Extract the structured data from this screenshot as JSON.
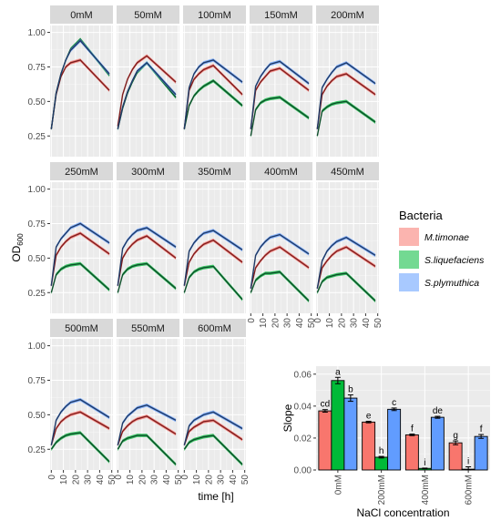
{
  "colors": {
    "M.timonae": "#f8766d",
    "S.liquefaciens": "#00ba38",
    "S.plymuthica": "#619cff",
    "line_dark": "#000000",
    "line_red": "#7f1d1d",
    "line_green": "#0d4d2a",
    "line_blue": "#1f3a66"
  },
  "chart_data": [
    {
      "type": "line",
      "facet_by": "NaCl concentration",
      "xlabel": "time [h]",
      "ylabel": "OD",
      "ylabel_sub": "600",
      "ylim": [
        0.1,
        1.05
      ],
      "xlim": [
        -1,
        51
      ],
      "x_ticks": [
        "0",
        "10",
        "20",
        "30",
        "40",
        "50"
      ],
      "y_ticks": [
        "0.25",
        "0.50",
        "0.75",
        "1.00"
      ],
      "legend": {
        "title": "Bacteria",
        "entries": [
          "M.timonae",
          "S.liquefaciens",
          "S.plymuthica"
        ],
        "position": "right"
      },
      "panels": [
        {
          "label": "0mM",
          "peak_t": 24,
          "series": [
            {
              "name": "M.timonae",
              "values": [
                0.3,
                0.55,
                0.68,
                0.75,
                0.78,
                0.8,
                0.58
              ]
            },
            {
              "name": "S.liquefaciens",
              "values": [
                0.3,
                0.56,
                0.7,
                0.8,
                0.88,
                0.95,
                0.69
              ]
            },
            {
              "name": "S.plymuthica",
              "values": [
                0.3,
                0.56,
                0.7,
                0.8,
                0.87,
                0.94,
                0.7
              ]
            }
          ]
        },
        {
          "label": "50mM",
          "peak_t": 24,
          "series": [
            {
              "name": "M.timonae",
              "values": [
                0.32,
                0.55,
                0.66,
                0.73,
                0.78,
                0.83,
                0.64
              ]
            },
            {
              "name": "S.liquefaciens",
              "values": [
                0.3,
                0.45,
                0.56,
                0.64,
                0.71,
                0.78,
                0.53
              ]
            },
            {
              "name": "S.plymuthica",
              "values": [
                0.3,
                0.46,
                0.57,
                0.65,
                0.72,
                0.78,
                0.55
              ]
            }
          ]
        },
        {
          "label": "100mM",
          "peak_t": 24,
          "series": [
            {
              "name": "M.timonae",
              "values": [
                0.3,
                0.58,
                0.66,
                0.7,
                0.73,
                0.76,
                0.55
              ]
            },
            {
              "name": "S.liquefaciens",
              "values": [
                0.3,
                0.47,
                0.54,
                0.58,
                0.61,
                0.65,
                0.47
              ]
            },
            {
              "name": "S.plymuthica",
              "values": [
                0.3,
                0.6,
                0.7,
                0.75,
                0.78,
                0.8,
                0.64
              ]
            }
          ]
        },
        {
          "label": "150mM",
          "peak_t": 24,
          "series": [
            {
              "name": "M.timonae",
              "values": [
                0.3,
                0.58,
                0.64,
                0.68,
                0.72,
                0.74,
                0.58
              ]
            },
            {
              "name": "S.liquefaciens",
              "values": [
                0.25,
                0.44,
                0.49,
                0.51,
                0.52,
                0.53,
                0.38
              ]
            },
            {
              "name": "S.plymuthica",
              "values": [
                0.3,
                0.61,
                0.68,
                0.73,
                0.77,
                0.79,
                0.63
              ]
            }
          ]
        },
        {
          "label": "200mM",
          "peak_t": 24,
          "series": [
            {
              "name": "M.timonae",
              "values": [
                0.3,
                0.55,
                0.61,
                0.65,
                0.68,
                0.7,
                0.55
              ]
            },
            {
              "name": "S.liquefaciens",
              "values": [
                0.25,
                0.43,
                0.46,
                0.48,
                0.49,
                0.5,
                0.35
              ]
            },
            {
              "name": "S.plymuthica",
              "values": [
                0.3,
                0.6,
                0.66,
                0.71,
                0.75,
                0.78,
                0.63
              ]
            }
          ]
        },
        {
          "label": "250mM",
          "peak_t": 24,
          "series": [
            {
              "name": "M.timonae",
              "values": [
                0.3,
                0.52,
                0.58,
                0.62,
                0.65,
                0.68,
                0.53
              ]
            },
            {
              "name": "S.liquefaciens",
              "values": [
                0.25,
                0.38,
                0.42,
                0.44,
                0.45,
                0.46,
                0.27
              ]
            },
            {
              "name": "S.plymuthica",
              "values": [
                0.3,
                0.58,
                0.64,
                0.68,
                0.72,
                0.75,
                0.61
              ]
            }
          ]
        },
        {
          "label": "300mM",
          "peak_t": 24,
          "series": [
            {
              "name": "M.timonae",
              "values": [
                0.3,
                0.5,
                0.56,
                0.6,
                0.63,
                0.66,
                0.5
              ]
            },
            {
              "name": "S.liquefaciens",
              "values": [
                0.25,
                0.38,
                0.42,
                0.44,
                0.45,
                0.46,
                0.28
              ]
            },
            {
              "name": "S.plymuthica",
              "values": [
                0.3,
                0.57,
                0.63,
                0.67,
                0.7,
                0.72,
                0.58
              ]
            }
          ]
        },
        {
          "label": "350mM",
          "peak_t": 24,
          "series": [
            {
              "name": "M.timonae",
              "values": [
                0.3,
                0.47,
                0.53,
                0.57,
                0.6,
                0.63,
                0.47
              ]
            },
            {
              "name": "S.liquefaciens",
              "values": [
                0.25,
                0.36,
                0.4,
                0.42,
                0.43,
                0.44,
                0.2
              ]
            },
            {
              "name": "S.plymuthica",
              "values": [
                0.3,
                0.55,
                0.61,
                0.65,
                0.68,
                0.7,
                0.56
              ]
            }
          ]
        },
        {
          "label": "400mM",
          "peak_t": 24,
          "series": [
            {
              "name": "M.timonae",
              "values": [
                0.28,
                0.43,
                0.48,
                0.52,
                0.55,
                0.58,
                0.43
              ]
            },
            {
              "name": "S.liquefaciens",
              "values": [
                0.25,
                0.34,
                0.37,
                0.39,
                0.39,
                0.4,
                0.19
              ]
            },
            {
              "name": "S.plymuthica",
              "values": [
                0.28,
                0.52,
                0.58,
                0.62,
                0.65,
                0.67,
                0.53
              ]
            }
          ]
        },
        {
          "label": "450mM",
          "peak_t": 24,
          "series": [
            {
              "name": "M.timonae",
              "values": [
                0.28,
                0.43,
                0.48,
                0.52,
                0.55,
                0.58,
                0.44
              ]
            },
            {
              "name": "S.liquefaciens",
              "values": [
                0.25,
                0.33,
                0.36,
                0.37,
                0.38,
                0.39,
                0.19
              ]
            },
            {
              "name": "S.plymuthica",
              "values": [
                0.28,
                0.48,
                0.55,
                0.59,
                0.62,
                0.65,
                0.52
              ]
            }
          ]
        },
        {
          "label": "500mM",
          "peak_t": 24,
          "series": [
            {
              "name": "M.timonae",
              "values": [
                0.28,
                0.4,
                0.45,
                0.48,
                0.5,
                0.52,
                0.4
              ]
            },
            {
              "name": "S.liquefaciens",
              "values": [
                0.25,
                0.3,
                0.33,
                0.35,
                0.36,
                0.37,
                0.16
              ]
            },
            {
              "name": "S.plymuthica",
              "values": [
                0.28,
                0.46,
                0.52,
                0.56,
                0.59,
                0.61,
                0.48
              ]
            }
          ]
        },
        {
          "label": "550mM",
          "peak_t": 24,
          "series": [
            {
              "name": "M.timonae",
              "values": [
                0.28,
                0.38,
                0.42,
                0.45,
                0.47,
                0.49,
                0.36
              ]
            },
            {
              "name": "S.liquefaciens",
              "values": [
                0.25,
                0.31,
                0.33,
                0.34,
                0.35,
                0.35,
                0.14
              ]
            },
            {
              "name": "S.plymuthica",
              "values": [
                0.28,
                0.44,
                0.49,
                0.52,
                0.55,
                0.57,
                0.46
              ]
            }
          ]
        },
        {
          "label": "600mM",
          "peak_t": 24,
          "series": [
            {
              "name": "M.timonae",
              "values": [
                0.28,
                0.38,
                0.41,
                0.43,
                0.45,
                0.46,
                0.32
              ]
            },
            {
              "name": "S.liquefaciens",
              "values": [
                0.25,
                0.3,
                0.32,
                0.33,
                0.34,
                0.35,
                0.14
              ]
            },
            {
              "name": "S.plymuthica",
              "values": [
                0.28,
                0.42,
                0.46,
                0.48,
                0.5,
                0.52,
                0.4
              ]
            }
          ]
        }
      ],
      "time_points": [
        0,
        4,
        8,
        12,
        16,
        24,
        48
      ]
    },
    {
      "type": "bar",
      "xlabel": "NaCl concentration",
      "ylabel": "Slope",
      "ylim": [
        0,
        0.065
      ],
      "y_ticks": [
        "0.00",
        "0.02",
        "0.04",
        "0.06"
      ],
      "categories": [
        "0mM",
        "200mM",
        "400mM",
        "600mM"
      ],
      "series": [
        {
          "name": "M.timonae",
          "values": [
            0.037,
            0.03,
            0.022,
            0.017
          ],
          "err": [
            0.0008,
            0.0005,
            0.0005,
            0.0012
          ],
          "letters": [
            "cd",
            "e",
            "f",
            "g"
          ]
        },
        {
          "name": "S.liquefaciens",
          "values": [
            0.056,
            0.008,
            0.001,
            0.0005
          ],
          "err": [
            0.002,
            0.0005,
            0.0002,
            0.0015
          ],
          "letters": [
            "a",
            "h",
            "i",
            "i"
          ]
        },
        {
          "name": "S.plymuthica",
          "values": [
            0.045,
            0.038,
            0.033,
            0.021
          ],
          "err": [
            0.002,
            0.0008,
            0.0006,
            0.0012
          ],
          "letters": [
            "b",
            "c",
            "de",
            "f"
          ]
        }
      ]
    }
  ]
}
